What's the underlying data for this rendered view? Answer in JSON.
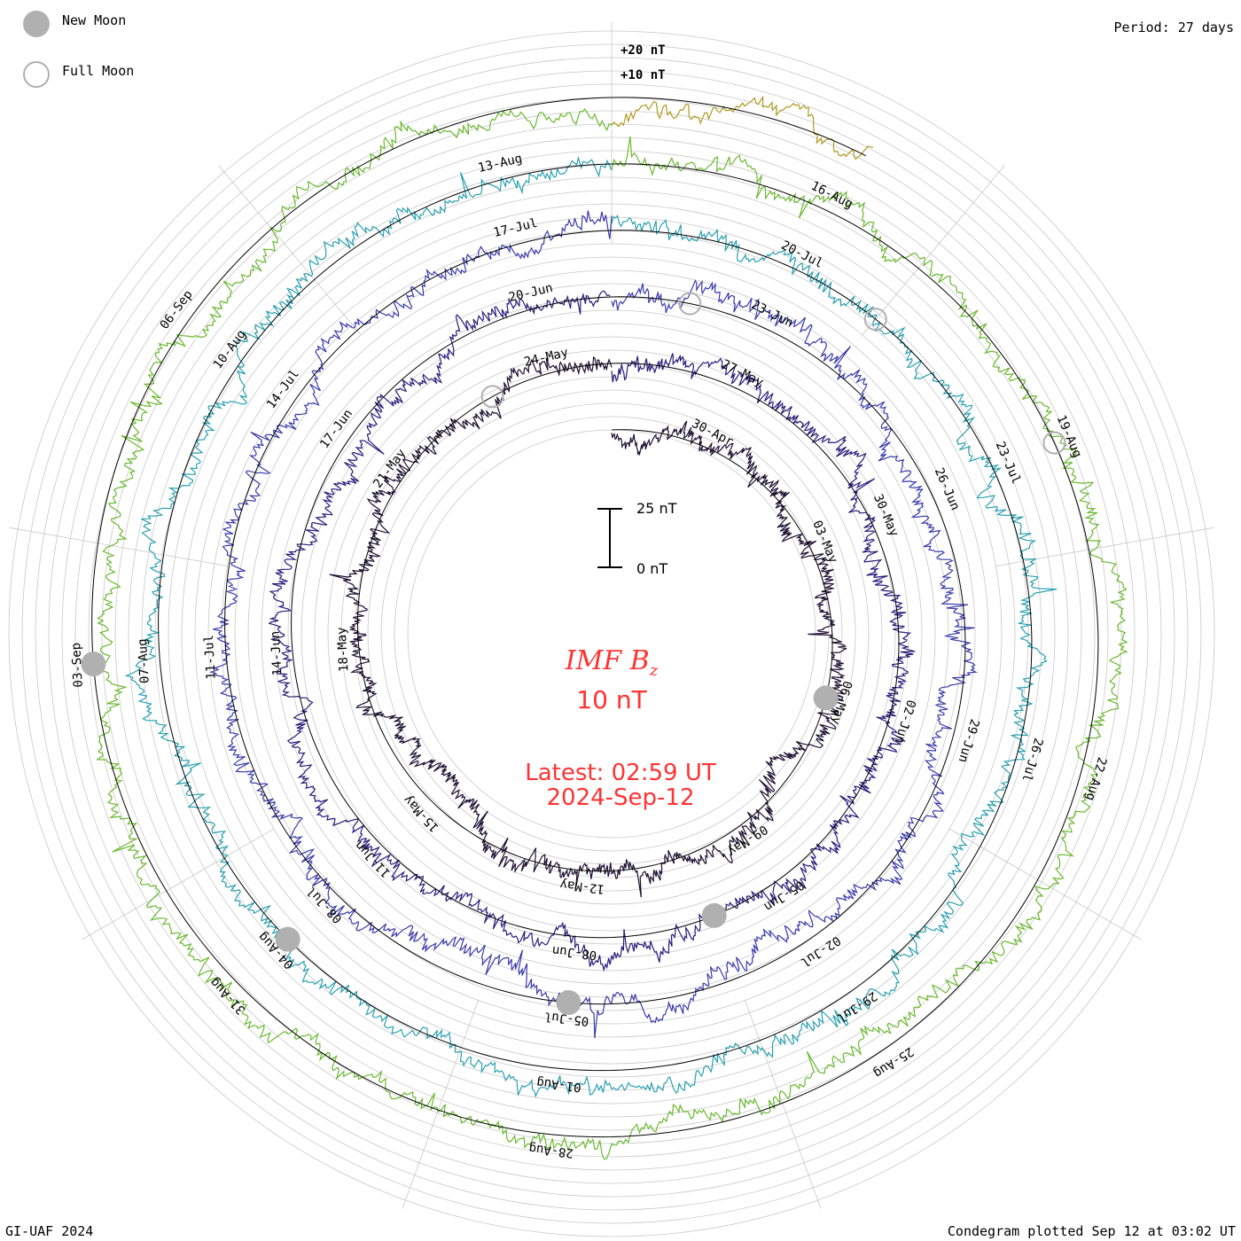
{
  "header": {
    "period_label": "Period: 27 days"
  },
  "legend": {
    "items": [
      {
        "label": "New Moon",
        "style": "filled",
        "color": "#b0b0b0"
      },
      {
        "label": "Full Moon",
        "style": "open",
        "color": "#b0b0b0"
      }
    ]
  },
  "center": {
    "title": "IMF B",
    "title_sub": "z",
    "scale_text": "10 nT",
    "latest_line1": "Latest: 02:59 UT",
    "latest_line2": "2024-Sep-12"
  },
  "scale_bar": {
    "top_label": "25 nT",
    "bottom_label": "0 nT"
  },
  "footer": {
    "left": "GI-UAF 2024",
    "right": "Condegram plotted Sep 12 at 03:02 UT"
  },
  "chart_data": {
    "type": "line",
    "title": "IMF Bz",
    "period_days": 27,
    "unit": "nT",
    "outer_axis_labels": [
      "+20 nT",
      "+10 nT"
    ],
    "grid": true,
    "colors": {
      "moon": "#b0b0b0",
      "text_red": "#ff3333",
      "grid": "#c8c8c8",
      "series": [
        "#1a1030",
        "#2a1a7a",
        "#3a3aaa",
        "#2aa0b0",
        "#6ab830",
        "#b09a20",
        "#b82010"
      ]
    },
    "date_labels": [
      {
        "text": "30-Apr",
        "ring": 0
      },
      {
        "text": "03-May",
        "ring": 0
      },
      {
        "text": "06-May",
        "ring": 0
      },
      {
        "text": "09-May",
        "ring": 0
      },
      {
        "text": "12-May",
        "ring": 0
      },
      {
        "text": "15-May",
        "ring": 0
      },
      {
        "text": "18-May",
        "ring": 0
      },
      {
        "text": "21-May",
        "ring": 0
      },
      {
        "text": "24-May",
        "ring": 0
      },
      {
        "text": "27-May",
        "ring": 1
      },
      {
        "text": "30-May",
        "ring": 1
      },
      {
        "text": "02-Jun",
        "ring": 1
      },
      {
        "text": "05-Jun",
        "ring": 1
      },
      {
        "text": "08-Jun",
        "ring": 1
      },
      {
        "text": "11-Jun",
        "ring": 1
      },
      {
        "text": "14-Jun",
        "ring": 1
      },
      {
        "text": "17-Jun",
        "ring": 1
      },
      {
        "text": "20-Jun",
        "ring": 1
      },
      {
        "text": "23-Jun",
        "ring": 2
      },
      {
        "text": "26-Jun",
        "ring": 2
      },
      {
        "text": "29-Jun",
        "ring": 2
      },
      {
        "text": "02-Jul",
        "ring": 2
      },
      {
        "text": "05-Jul",
        "ring": 2
      },
      {
        "text": "08-Jul",
        "ring": 2
      },
      {
        "text": "11-Jul",
        "ring": 2
      },
      {
        "text": "14-Jul",
        "ring": 2
      },
      {
        "text": "17-Jul",
        "ring": 2
      },
      {
        "text": "20-Jul",
        "ring": 3
      },
      {
        "text": "23-Jul",
        "ring": 3
      },
      {
        "text": "26-Jul",
        "ring": 3
      },
      {
        "text": "29-Jul",
        "ring": 3
      },
      {
        "text": "01-Aug",
        "ring": 3
      },
      {
        "text": "04-Aug",
        "ring": 3
      },
      {
        "text": "07-Aug",
        "ring": 3
      },
      {
        "text": "10-Aug",
        "ring": 3
      },
      {
        "text": "13-Aug",
        "ring": 3
      },
      {
        "text": "16-Aug",
        "ring": 4
      },
      {
        "text": "19-Aug",
        "ring": 4
      },
      {
        "text": "22-Aug",
        "ring": 4
      },
      {
        "text": "25-Aug",
        "ring": 4
      },
      {
        "text": "28-Aug",
        "ring": 4
      },
      {
        "text": "31-Aug",
        "ring": 4
      },
      {
        "text": "03-Sep",
        "ring": 4
      },
      {
        "text": "06-Sep",
        "ring": 4
      }
    ],
    "new_moons": [
      "06-May",
      "06-Jun",
      "05-Jul",
      "04-Aug",
      "03-Sep"
    ],
    "full_moons": [
      "23-May",
      "22-Jun",
      "21-Jul",
      "19-Aug"
    ],
    "start_date": "2024-04-28",
    "end_date": "2024-09-12"
  }
}
